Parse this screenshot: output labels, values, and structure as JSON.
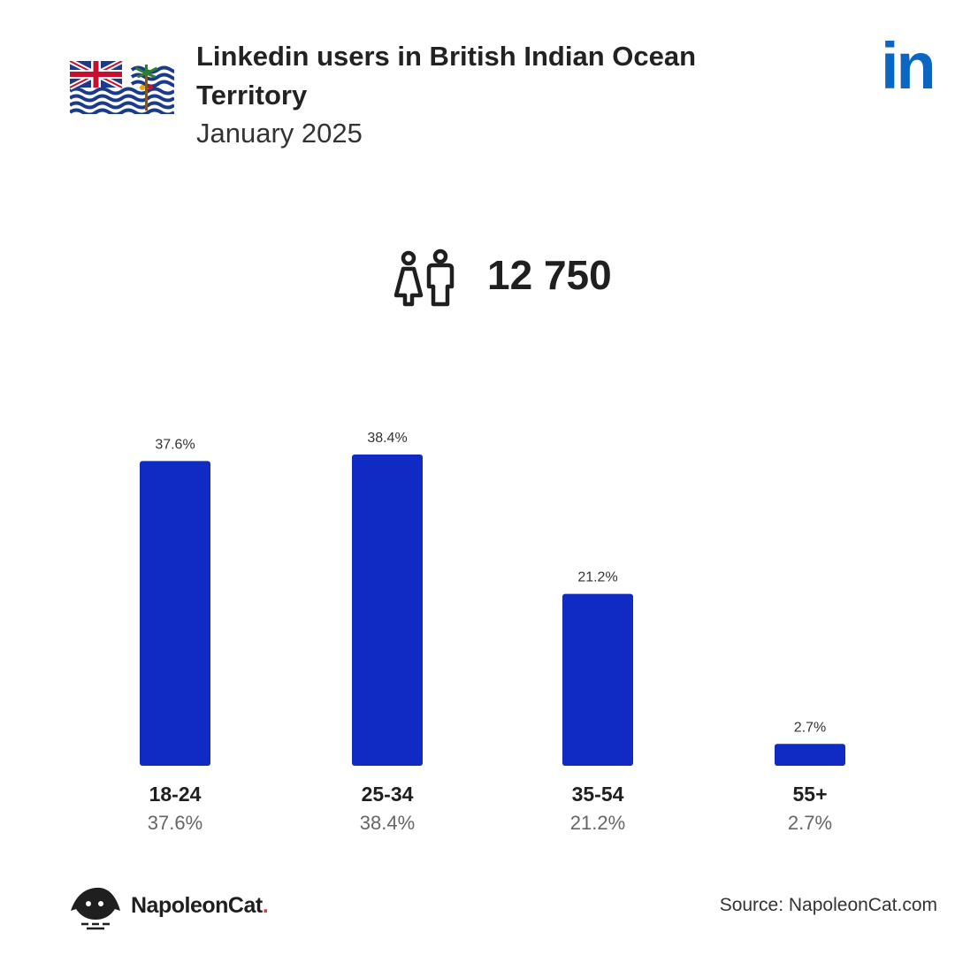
{
  "header": {
    "title": "Linkedin users in British Indian Ocean Territory",
    "subtitle": "January 2025",
    "logo_text": "in"
  },
  "total": {
    "value": "12 750",
    "icon": "users-icon"
  },
  "chart_data": {
    "type": "bar",
    "categories": [
      "18-24",
      "25-34",
      "35-54",
      "55+"
    ],
    "values": [
      37.6,
      38.4,
      21.2,
      2.7
    ],
    "value_labels": [
      "37.6%",
      "38.4%",
      "21.2%",
      "2.7%"
    ],
    "ylim": [
      0,
      38.4
    ],
    "grid": false,
    "bar_color": "#0f2bc4"
  },
  "footer": {
    "brand": "NapoleonCat",
    "brand_dot": ".",
    "source": "Source: NapoleonCat.com"
  },
  "colors": {
    "accent": "#0f2bc4",
    "linkedin": "#0a66c2",
    "brand_dot": "#e63946"
  }
}
